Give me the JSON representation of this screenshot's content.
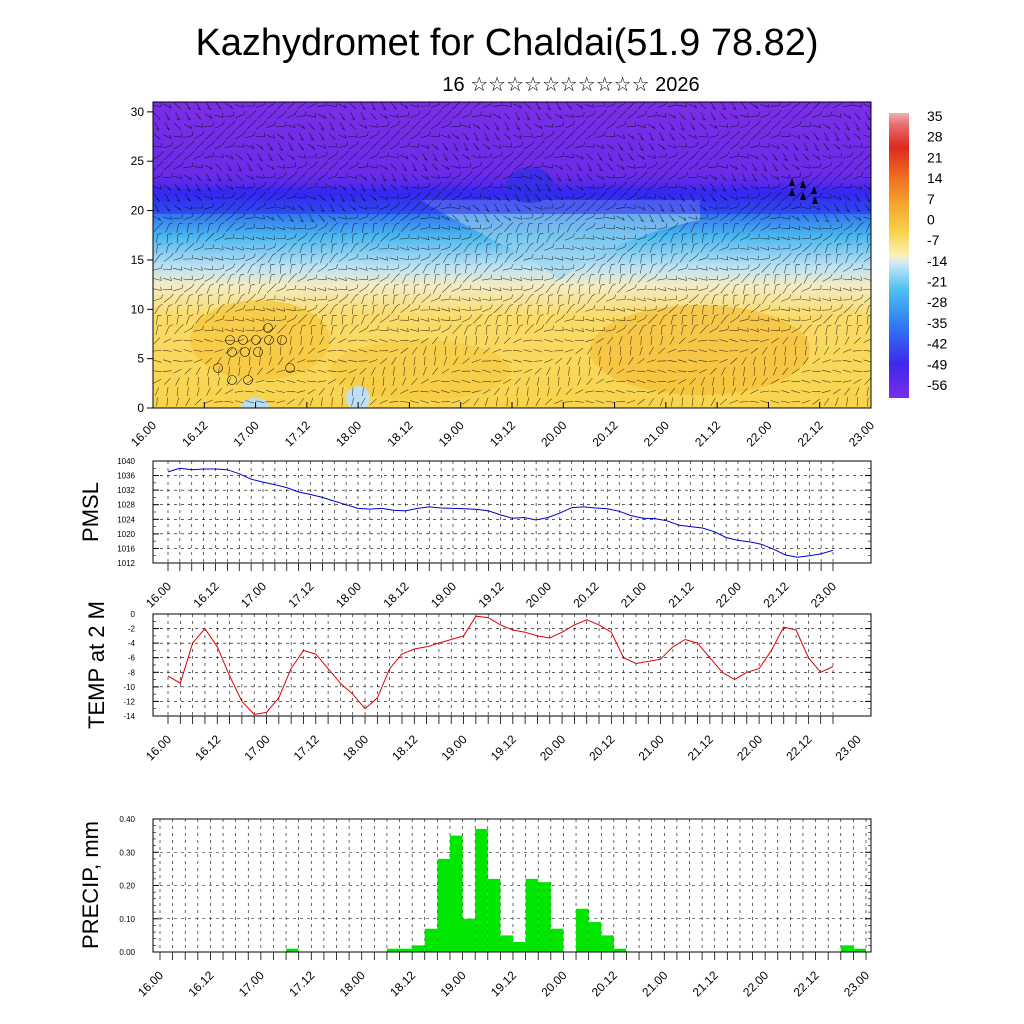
{
  "title": "Kazhydromet for Chaldai(51.9 78.82)",
  "subtitle": "16 ☆☆☆☆☆☆☆☆☆☆ 2026",
  "x_tick_labels": [
    "16.00",
    "16.12",
    "17.00",
    "17.12",
    "18.00",
    "18.12",
    "19.00",
    "19.12",
    "20.00",
    "20.12",
    "21.00",
    "21.12",
    "22.00",
    "22.12",
    "23.00"
  ],
  "chart_data": [
    {
      "type": "heatmap",
      "xlabel": "",
      "ylabel": "",
      "y_ticks": [
        0,
        5,
        10,
        15,
        20,
        25,
        30
      ],
      "ylim": [
        0,
        31
      ],
      "colorbar_labels": [
        "35",
        "28",
        "21",
        "14",
        "7",
        "0",
        "-7",
        "-14",
        "-21",
        "-28",
        "-35",
        "-42",
        "-49",
        "-56"
      ],
      "colors": {
        "warm": "#f9d24a",
        "light": "#dce9f5",
        "cold_blue": "#3aaef0",
        "deep": "#3a2ef2",
        "purple": "#7a2ee8"
      }
    },
    {
      "type": "line",
      "ylabel": "PMSL",
      "y_ticks": [
        1012,
        1016,
        1020,
        1024,
        1028,
        1032,
        1036,
        1040
      ],
      "ylim": [
        1012,
        1040
      ],
      "color": "#0000cc",
      "x": [
        0,
        1,
        2,
        3,
        4,
        5,
        6,
        7,
        8,
        9,
        10,
        11,
        12,
        13,
        14,
        15,
        16,
        17,
        18,
        19,
        20,
        21,
        22,
        23,
        24,
        25,
        26,
        27,
        28,
        29,
        30,
        31,
        32,
        33,
        34,
        35,
        36,
        37,
        38,
        39,
        40,
        41,
        42,
        43,
        44,
        45,
        46,
        47,
        48,
        49,
        50,
        51,
        52,
        53,
        54,
        55,
        56
      ],
      "values": [
        1037,
        1038,
        1037.6,
        1037.8,
        1037.8,
        1037.6,
        1036.5,
        1035,
        1034.2,
        1033.5,
        1032.7,
        1031.5,
        1030.8,
        1030,
        1029,
        1028,
        1027,
        1026.8,
        1027,
        1026.5,
        1026.3,
        1027,
        1027.4,
        1027.1,
        1027,
        1026.9,
        1026.7,
        1026.3,
        1025.2,
        1024.3,
        1024.5,
        1023.8,
        1024.5,
        1025.7,
        1027.2,
        1027.4,
        1027.1,
        1026.9,
        1026.2,
        1025,
        1024.3,
        1024.2,
        1023.6,
        1022.4,
        1022,
        1021.6,
        1020.6,
        1019,
        1018.2,
        1017.8,
        1017.1,
        1015.8,
        1014.2,
        1013.6,
        1014,
        1014.5,
        1015.5
      ]
    },
    {
      "type": "line",
      "ylabel": "TEMP at 2 M",
      "y_ticks": [
        0,
        -2,
        -4,
        -6,
        -8,
        -10,
        -12,
        -14
      ],
      "ylim": [
        -14,
        0
      ],
      "color": "#dd0000",
      "x": [
        0,
        1,
        2,
        3,
        4,
        5,
        6,
        7,
        8,
        9,
        10,
        11,
        12,
        13,
        14,
        15,
        16,
        17,
        18,
        19,
        20,
        21,
        22,
        23,
        24,
        25,
        26,
        27,
        28,
        29,
        30,
        31,
        32,
        33,
        34,
        35,
        36,
        37,
        38,
        39,
        40,
        41,
        42,
        43,
        44,
        45,
        46,
        47,
        48,
        49,
        50,
        51,
        52,
        53,
        54
      ],
      "values": [
        -8.5,
        -9.5,
        -4,
        -2,
        -4.5,
        -8.5,
        -12,
        -13.8,
        -13.5,
        -11.5,
        -7.5,
        -5,
        -5.5,
        -7.5,
        -9.5,
        -11,
        -13,
        -11.5,
        -7.5,
        -5.5,
        -4.8,
        -4.5,
        -4,
        -3.5,
        -3,
        -0.3,
        -0.5,
        -1.5,
        -2.2,
        -2.5,
        -3,
        -3.3,
        -2.5,
        -1.5,
        -0.8,
        -1.5,
        -2.5,
        -6,
        -6.8,
        -6.5,
        -6.2,
        -4.5,
        -3.5,
        -4,
        -6,
        -8,
        -9,
        -8,
        -7.5,
        -5,
        -1.8,
        -2.2,
        -6,
        -8,
        -7.2
      ]
    },
    {
      "type": "bar",
      "ylabel": "PRECIP, mm",
      "y_ticks": [
        0.0,
        0.1,
        0.2,
        0.3,
        0.4
      ],
      "y_tick_labels": [
        "0.00",
        "0.10",
        "0.20",
        "0.30",
        "0.40"
      ],
      "ylim": [
        0,
        0.4
      ],
      "color": "#00e600",
      "x": [
        0,
        1,
        2,
        3,
        4,
        5,
        6,
        7,
        8,
        9,
        10,
        11,
        12,
        13,
        14,
        15,
        16,
        17,
        18,
        19,
        20,
        21,
        22,
        23,
        24,
        25,
        26,
        27,
        28,
        29,
        30,
        31,
        32,
        33,
        34,
        35,
        36,
        37,
        38,
        39,
        40,
        41,
        42,
        43,
        44,
        45,
        46,
        47,
        48,
        49,
        50,
        51,
        52,
        53,
        54,
        55,
        56
      ],
      "values": [
        0,
        0,
        0,
        0,
        0,
        0,
        0,
        0,
        0,
        0,
        0,
        0.01,
        0,
        0,
        0,
        0,
        0,
        0,
        0,
        0.01,
        0.01,
        0.02,
        0.07,
        0.28,
        0.35,
        0.1,
        0.37,
        0.22,
        0.05,
        0.03,
        0.22,
        0.21,
        0.07,
        0,
        0.13,
        0.09,
        0.05,
        0.01,
        0,
        0,
        0,
        0,
        0,
        0,
        0,
        0,
        0,
        0,
        0,
        0,
        0,
        0,
        0,
        0,
        0,
        0.02,
        0.01
      ]
    }
  ]
}
